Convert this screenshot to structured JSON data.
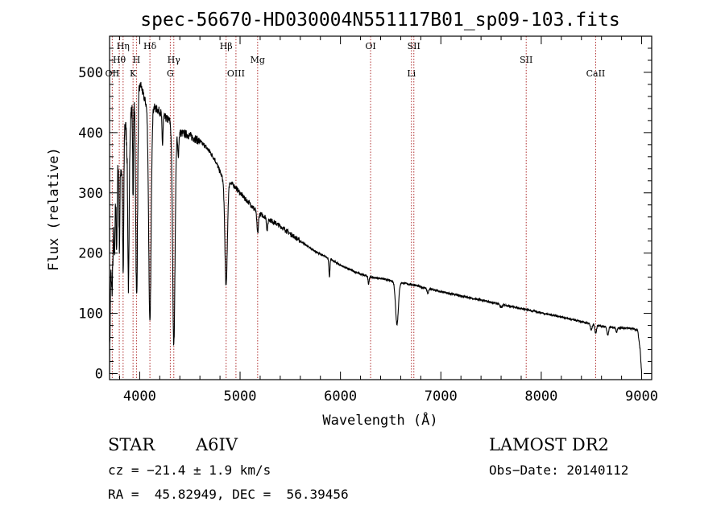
{
  "chart_data": {
    "type": "line",
    "title": "spec-56670-HD030004N551117B01_sp09-103.fits",
    "xlabel": "Wavelength (Å)",
    "ylabel": "Flux (relative)",
    "xlim": [
      3700,
      9100
    ],
    "ylim": [
      -10,
      560
    ],
    "xticks": [
      {
        "value": 4000,
        "label": "4000"
      },
      {
        "value": 5000,
        "label": "5000"
      },
      {
        "value": 6000,
        "label": "6000"
      },
      {
        "value": 7000,
        "label": "7000"
      },
      {
        "value": 8000,
        "label": "8000"
      },
      {
        "value": 9000,
        "label": "9000"
      }
    ],
    "yticks": [
      {
        "value": 0,
        "label": "0"
      },
      {
        "value": 100,
        "label": "100"
      },
      {
        "value": 200,
        "label": "200"
      },
      {
        "value": 300,
        "label": "300"
      },
      {
        "value": 400,
        "label": "400"
      },
      {
        "value": 500,
        "label": "500"
      }
    ],
    "grid": false,
    "line_color": "#000000",
    "marker_color": "#b03030",
    "continuum": [
      [
        3700,
        10
      ],
      [
        3712,
        170
      ],
      [
        3725,
        130
      ],
      [
        3740,
        240
      ],
      [
        3760,
        300
      ],
      [
        3790,
        360
      ],
      [
        3820,
        340
      ],
      [
        3850,
        420
      ],
      [
        3880,
        380
      ],
      [
        3910,
        430
      ],
      [
        3940,
        450
      ],
      [
        3965,
        440
      ],
      [
        3990,
        470
      ],
      [
        4010,
        480
      ],
      [
        4040,
        460
      ],
      [
        4080,
        440
      ],
      [
        4120,
        445
      ],
      [
        4160,
        440
      ],
      [
        4200,
        435
      ],
      [
        4250,
        425
      ],
      [
        4300,
        420
      ],
      [
        4350,
        405
      ],
      [
        4400,
        400
      ],
      [
        4450,
        398
      ],
      [
        4500,
        395
      ],
      [
        4550,
        390
      ],
      [
        4600,
        385
      ],
      [
        4650,
        378
      ],
      [
        4700,
        368
      ],
      [
        4750,
        355
      ],
      [
        4800,
        335
      ],
      [
        4850,
        315
      ],
      [
        4900,
        318
      ],
      [
        4950,
        310
      ],
      [
        5000,
        300
      ],
      [
        5050,
        290
      ],
      [
        5100,
        282
      ],
      [
        5150,
        272
      ],
      [
        5200,
        265
      ],
      [
        5300,
        255
      ],
      [
        5400,
        245
      ],
      [
        5500,
        232
      ],
      [
        5600,
        220
      ],
      [
        5700,
        208
      ],
      [
        5800,
        198
      ],
      [
        5900,
        190
      ],
      [
        6000,
        180
      ],
      [
        6100,
        172
      ],
      [
        6200,
        165
      ],
      [
        6300,
        160
      ],
      [
        6400,
        158
      ],
      [
        6500,
        154
      ],
      [
        6600,
        151
      ],
      [
        6700,
        148
      ],
      [
        6800,
        144
      ],
      [
        6900,
        140
      ],
      [
        7000,
        136
      ],
      [
        7200,
        129
      ],
      [
        7400,
        122
      ],
      [
        7600,
        115
      ],
      [
        7800,
        108
      ],
      [
        8000,
        101
      ],
      [
        8200,
        94
      ],
      [
        8400,
        86
      ],
      [
        8500,
        82
      ],
      [
        8600,
        79
      ],
      [
        8700,
        77
      ],
      [
        8800,
        76
      ],
      [
        8900,
        75
      ],
      [
        8960,
        72
      ],
      [
        8985,
        40
      ],
      [
        9000,
        0
      ]
    ],
    "absorption": [
      [
        3750,
        80,
        5
      ],
      [
        3771,
        110,
        5
      ],
      [
        3798,
        140,
        5
      ],
      [
        3836,
        220,
        6
      ],
      [
        3889,
        250,
        7
      ],
      [
        3934,
        150,
        4
      ],
      [
        3970,
        320,
        9
      ],
      [
        4102,
        360,
        12
      ],
      [
        4340,
        360,
        12
      ],
      [
        4227,
        50,
        5
      ],
      [
        4384,
        40,
        6
      ],
      [
        4861,
        170,
        12
      ],
      [
        5175,
        35,
        8
      ],
      [
        5270,
        20,
        6
      ],
      [
        5890,
        30,
        5
      ],
      [
        6280,
        12,
        5
      ],
      [
        6563,
        70,
        14
      ],
      [
        6870,
        8,
        8
      ],
      [
        7600,
        6,
        10
      ],
      [
        8498,
        10,
        8
      ],
      [
        8542,
        14,
        8
      ],
      [
        8662,
        14,
        8
      ],
      [
        8750,
        8,
        6
      ]
    ],
    "lines": [
      {
        "label": "Hη",
        "x": 3835,
        "row": 0
      },
      {
        "label": "Hθ",
        "x": 3797,
        "row": 1
      },
      {
        "label": "OII",
        "x": 3727,
        "row": 2
      },
      {
        "label": "H",
        "x": 3968,
        "row": 1
      },
      {
        "label": "K",
        "x": 3934,
        "row": 2
      },
      {
        "label": "Hδ",
        "x": 4102,
        "row": 0
      },
      {
        "label": "Hγ",
        "x": 4340,
        "row": 1
      },
      {
        "label": "G",
        "x": 4305,
        "row": 2
      },
      {
        "label": "Hβ",
        "x": 4861,
        "row": 0
      },
      {
        "label": "OIII",
        "x": 4959,
        "row": 2
      },
      {
        "label": "Mg",
        "x": 5175,
        "row": 1
      },
      {
        "label": "OI",
        "x": 6300,
        "row": 0
      },
      {
        "label": "SII",
        "x": 6731,
        "row": 0
      },
      {
        "label": "Li",
        "x": 6707,
        "row": 2
      },
      {
        "label": "SII",
        "x": 7850,
        "row": 1
      },
      {
        "label": "CaII",
        "x": 8542,
        "row": 2
      }
    ]
  },
  "info": {
    "object_type": "STAR",
    "subclass": "A6IV",
    "survey": "LAMOST DR2",
    "cz": "cz = −21.4 ± 1.9 km/s",
    "obs_date": "Obs−Date: 20140112",
    "coords": "RA =  45.82949, DEC =  56.39456"
  }
}
